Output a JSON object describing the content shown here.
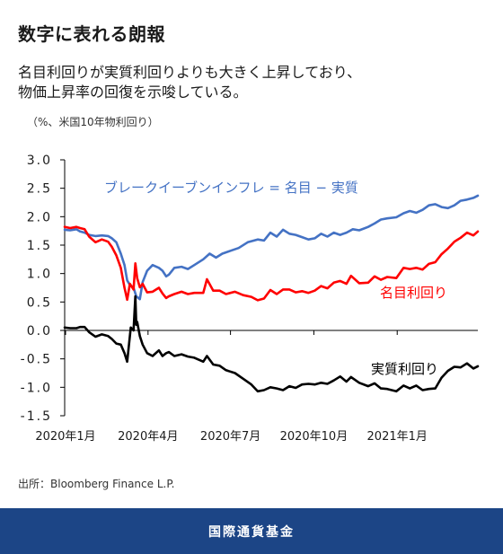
{
  "header": {
    "title": "数字に表れる朗報",
    "subtitle_line1": "名目利回りが実質利回りよりも大きく上昇しており、",
    "subtitle_line2": "物価上昇率の回復を示唆している。",
    "unit_note": "（%、米国10年物利回り）"
  },
  "source": "出所：Bloomberg Finance L.P.",
  "footer": {
    "org_name": "国際通貨基金"
  },
  "colors": {
    "breakeven": "#4472c4",
    "nominal": "#ff0000",
    "real": "#000000",
    "footer_bg": "#1c4586"
  },
  "chart_data": {
    "type": "line",
    "x_tick_labels": [
      "2020年1月",
      "2020年4月",
      "2020年7月",
      "2020年10月",
      "2021年1月"
    ],
    "x_ticks": [
      "2020-01",
      "2020-04",
      "2020-07",
      "2020-10",
      "2021-01"
    ],
    "y_tick_labels": [
      "3.0",
      "2.5",
      "2.0",
      "1.5",
      "1.0",
      "0.5",
      "0.0",
      "-0.5",
      "-1.0",
      "-1.5"
    ],
    "ylim": [
      -1.5,
      3.0
    ],
    "xlim": [
      "2019-12-31",
      "2021-03-31"
    ],
    "series": [
      {
        "name": "ブレークイーブンインフレ = 名目 − 実質",
        "color": "#4472c4",
        "points": [
          [
            "2019-12-31",
            1.77
          ],
          [
            "2020-01-06",
            1.76
          ],
          [
            "2020-01-13",
            1.78
          ],
          [
            "2020-01-17",
            1.74
          ],
          [
            "2020-01-22",
            1.72
          ],
          [
            "2020-01-27",
            1.68
          ],
          [
            "2020-02-03",
            1.66
          ],
          [
            "2020-02-10",
            1.67
          ],
          [
            "2020-02-17",
            1.66
          ],
          [
            "2020-02-21",
            1.62
          ],
          [
            "2020-02-26",
            1.55
          ],
          [
            "2020-03-02",
            1.35
          ],
          [
            "2020-03-06",
            1.15
          ],
          [
            "2020-03-09",
            0.88
          ],
          [
            "2020-03-12",
            0.8
          ],
          [
            "2020-03-16",
            0.75
          ],
          [
            "2020-03-19",
            0.6
          ],
          [
            "2020-03-23",
            0.55
          ],
          [
            "2020-03-26",
            0.85
          ],
          [
            "2020-03-31",
            1.05
          ],
          [
            "2020-04-06",
            1.15
          ],
          [
            "2020-04-13",
            1.1
          ],
          [
            "2020-04-17",
            1.05
          ],
          [
            "2020-04-21",
            0.95
          ],
          [
            "2020-04-24",
            0.98
          ],
          [
            "2020-04-30",
            1.1
          ],
          [
            "2020-05-08",
            1.12
          ],
          [
            "2020-05-15",
            1.08
          ],
          [
            "2020-05-22",
            1.15
          ],
          [
            "2020-06-01",
            1.25
          ],
          [
            "2020-06-08",
            1.35
          ],
          [
            "2020-06-15",
            1.28
          ],
          [
            "2020-06-22",
            1.35
          ],
          [
            "2020-07-01",
            1.4
          ],
          [
            "2020-07-10",
            1.45
          ],
          [
            "2020-07-20",
            1.55
          ],
          [
            "2020-07-31",
            1.6
          ],
          [
            "2020-08-07",
            1.58
          ],
          [
            "2020-08-14",
            1.72
          ],
          [
            "2020-08-21",
            1.65
          ],
          [
            "2020-08-28",
            1.77
          ],
          [
            "2020-09-04",
            1.7
          ],
          [
            "2020-09-11",
            1.68
          ],
          [
            "2020-09-18",
            1.64
          ],
          [
            "2020-09-25",
            1.6
          ],
          [
            "2020-10-02",
            1.62
          ],
          [
            "2020-10-09",
            1.7
          ],
          [
            "2020-10-16",
            1.65
          ],
          [
            "2020-10-23",
            1.72
          ],
          [
            "2020-10-30",
            1.68
          ],
          [
            "2020-11-06",
            1.72
          ],
          [
            "2020-11-13",
            1.78
          ],
          [
            "2020-11-20",
            1.76
          ],
          [
            "2020-11-30",
            1.82
          ],
          [
            "2020-12-07",
            1.88
          ],
          [
            "2020-12-14",
            1.95
          ],
          [
            "2020-12-21",
            1.97
          ],
          [
            "2020-12-31",
            1.99
          ],
          [
            "2021-01-08",
            2.06
          ],
          [
            "2021-01-15",
            2.1
          ],
          [
            "2021-01-22",
            2.07
          ],
          [
            "2021-01-29",
            2.12
          ],
          [
            "2021-02-05",
            2.2
          ],
          [
            "2021-02-12",
            2.22
          ],
          [
            "2021-02-19",
            2.17
          ],
          [
            "2021-02-26",
            2.15
          ],
          [
            "2021-03-05",
            2.2
          ],
          [
            "2021-03-12",
            2.28
          ],
          [
            "2021-03-19",
            2.3
          ],
          [
            "2021-03-26",
            2.33
          ],
          [
            "2021-03-31",
            2.37
          ]
        ]
      },
      {
        "name": "名目利回り",
        "color": "#ff0000",
        "points": [
          [
            "2019-12-31",
            1.82
          ],
          [
            "2020-01-06",
            1.8
          ],
          [
            "2020-01-13",
            1.82
          ],
          [
            "2020-01-17",
            1.8
          ],
          [
            "2020-01-22",
            1.78
          ],
          [
            "2020-01-27",
            1.65
          ],
          [
            "2020-02-03",
            1.55
          ],
          [
            "2020-02-10",
            1.6
          ],
          [
            "2020-02-17",
            1.56
          ],
          [
            "2020-02-21",
            1.47
          ],
          [
            "2020-02-26",
            1.32
          ],
          [
            "2020-03-02",
            1.1
          ],
          [
            "2020-03-06",
            0.75
          ],
          [
            "2020-03-09",
            0.54
          ],
          [
            "2020-03-12",
            0.82
          ],
          [
            "2020-03-16",
            0.72
          ],
          [
            "2020-03-18",
            1.18
          ],
          [
            "2020-03-20",
            0.92
          ],
          [
            "2020-03-23",
            0.76
          ],
          [
            "2020-03-26",
            0.82
          ],
          [
            "2020-03-31",
            0.67
          ],
          [
            "2020-04-06",
            0.68
          ],
          [
            "2020-04-13",
            0.75
          ],
          [
            "2020-04-17",
            0.65
          ],
          [
            "2020-04-21",
            0.57
          ],
          [
            "2020-04-24",
            0.6
          ],
          [
            "2020-04-30",
            0.64
          ],
          [
            "2020-05-08",
            0.68
          ],
          [
            "2020-05-15",
            0.64
          ],
          [
            "2020-05-22",
            0.66
          ],
          [
            "2020-06-01",
            0.66
          ],
          [
            "2020-06-05",
            0.9
          ],
          [
            "2020-06-12",
            0.7
          ],
          [
            "2020-06-19",
            0.7
          ],
          [
            "2020-06-26",
            0.64
          ],
          [
            "2020-07-06",
            0.68
          ],
          [
            "2020-07-15",
            0.62
          ],
          [
            "2020-07-24",
            0.59
          ],
          [
            "2020-07-31",
            0.53
          ],
          [
            "2020-08-07",
            0.56
          ],
          [
            "2020-08-14",
            0.71
          ],
          [
            "2020-08-21",
            0.64
          ],
          [
            "2020-08-28",
            0.72
          ],
          [
            "2020-09-04",
            0.72
          ],
          [
            "2020-09-11",
            0.67
          ],
          [
            "2020-09-18",
            0.69
          ],
          [
            "2020-09-25",
            0.66
          ],
          [
            "2020-10-02",
            0.7
          ],
          [
            "2020-10-09",
            0.78
          ],
          [
            "2020-10-16",
            0.74
          ],
          [
            "2020-10-23",
            0.84
          ],
          [
            "2020-10-30",
            0.87
          ],
          [
            "2020-11-06",
            0.82
          ],
          [
            "2020-11-11",
            0.96
          ],
          [
            "2020-11-20",
            0.83
          ],
          [
            "2020-11-30",
            0.84
          ],
          [
            "2020-12-07",
            0.95
          ],
          [
            "2020-12-14",
            0.89
          ],
          [
            "2020-12-21",
            0.94
          ],
          [
            "2020-12-31",
            0.92
          ],
          [
            "2021-01-08",
            1.1
          ],
          [
            "2021-01-15",
            1.08
          ],
          [
            "2021-01-22",
            1.1
          ],
          [
            "2021-01-29",
            1.07
          ],
          [
            "2021-02-05",
            1.17
          ],
          [
            "2021-02-12",
            1.2
          ],
          [
            "2021-02-19",
            1.34
          ],
          [
            "2021-02-26",
            1.44
          ],
          [
            "2021-03-05",
            1.56
          ],
          [
            "2021-03-12",
            1.63
          ],
          [
            "2021-03-19",
            1.72
          ],
          [
            "2021-03-26",
            1.67
          ],
          [
            "2021-03-31",
            1.74
          ]
        ]
      },
      {
        "name": "実質利回り",
        "color": "#000000",
        "points": [
          [
            "2019-12-31",
            0.05
          ],
          [
            "2020-01-06",
            0.04
          ],
          [
            "2020-01-13",
            0.04
          ],
          [
            "2020-01-17",
            0.06
          ],
          [
            "2020-01-22",
            0.06
          ],
          [
            "2020-01-27",
            -0.03
          ],
          [
            "2020-02-03",
            -0.11
          ],
          [
            "2020-02-10",
            -0.07
          ],
          [
            "2020-02-17",
            -0.1
          ],
          [
            "2020-02-21",
            -0.15
          ],
          [
            "2020-02-26",
            -0.23
          ],
          [
            "2020-03-02",
            -0.25
          ],
          [
            "2020-03-06",
            -0.4
          ],
          [
            "2020-03-09",
            -0.55
          ],
          [
            "2020-03-12",
            -0.1
          ],
          [
            "2020-03-13",
            0.05
          ],
          [
            "2020-03-16",
            0.0
          ],
          [
            "2020-03-18",
            0.6
          ],
          [
            "2020-03-19",
            0.1
          ],
          [
            "2020-03-20",
            0.15
          ],
          [
            "2020-03-23",
            -0.1
          ],
          [
            "2020-03-26",
            -0.25
          ],
          [
            "2020-03-31",
            -0.4
          ],
          [
            "2020-04-06",
            -0.45
          ],
          [
            "2020-04-13",
            -0.35
          ],
          [
            "2020-04-17",
            -0.45
          ],
          [
            "2020-04-21",
            -0.4
          ],
          [
            "2020-04-24",
            -0.38
          ],
          [
            "2020-04-30",
            -0.45
          ],
          [
            "2020-05-08",
            -0.42
          ],
          [
            "2020-05-15",
            -0.46
          ],
          [
            "2020-05-22",
            -0.48
          ],
          [
            "2020-06-01",
            -0.55
          ],
          [
            "2020-06-05",
            -0.45
          ],
          [
            "2020-06-12",
            -0.6
          ],
          [
            "2020-06-19",
            -0.62
          ],
          [
            "2020-06-26",
            -0.7
          ],
          [
            "2020-07-06",
            -0.75
          ],
          [
            "2020-07-15",
            -0.85
          ],
          [
            "2020-07-24",
            -0.95
          ],
          [
            "2020-07-31",
            -1.07
          ],
          [
            "2020-08-07",
            -1.05
          ],
          [
            "2020-08-14",
            -1.0
          ],
          [
            "2020-08-21",
            -1.02
          ],
          [
            "2020-08-28",
            -1.05
          ],
          [
            "2020-09-04",
            -0.98
          ],
          [
            "2020-09-11",
            -1.01
          ],
          [
            "2020-09-18",
            -0.95
          ],
          [
            "2020-09-25",
            -0.94
          ],
          [
            "2020-10-02",
            -0.95
          ],
          [
            "2020-10-09",
            -0.92
          ],
          [
            "2020-10-16",
            -0.94
          ],
          [
            "2020-10-23",
            -0.88
          ],
          [
            "2020-10-30",
            -0.81
          ],
          [
            "2020-11-06",
            -0.9
          ],
          [
            "2020-11-11",
            -0.82
          ],
          [
            "2020-11-20",
            -0.92
          ],
          [
            "2020-11-30",
            -0.98
          ],
          [
            "2020-12-07",
            -0.93
          ],
          [
            "2020-12-14",
            -1.02
          ],
          [
            "2020-12-21",
            -1.03
          ],
          [
            "2020-12-31",
            -1.07
          ],
          [
            "2021-01-08",
            -0.97
          ],
          [
            "2021-01-15",
            -1.02
          ],
          [
            "2021-01-22",
            -0.97
          ],
          [
            "2021-01-29",
            -1.05
          ],
          [
            "2021-02-05",
            -1.03
          ],
          [
            "2021-02-12",
            -1.02
          ],
          [
            "2021-02-19",
            -0.83
          ],
          [
            "2021-02-26",
            -0.71
          ],
          [
            "2021-03-05",
            -0.64
          ],
          [
            "2021-03-12",
            -0.65
          ],
          [
            "2021-03-19",
            -0.58
          ],
          [
            "2021-03-26",
            -0.67
          ],
          [
            "2021-03-31",
            -0.63
          ]
        ]
      }
    ],
    "annotations": [
      {
        "text": "ブレークイーブンインフレ = 名目 − 実質",
        "color": "#4472c4",
        "anchor": "upper-left"
      },
      {
        "text": "名目利回り",
        "color": "#ff0000",
        "anchor": "right"
      },
      {
        "text": "実質利回り",
        "color": "#000000",
        "anchor": "lower-right"
      }
    ],
    "grid": false,
    "legend": "none"
  }
}
